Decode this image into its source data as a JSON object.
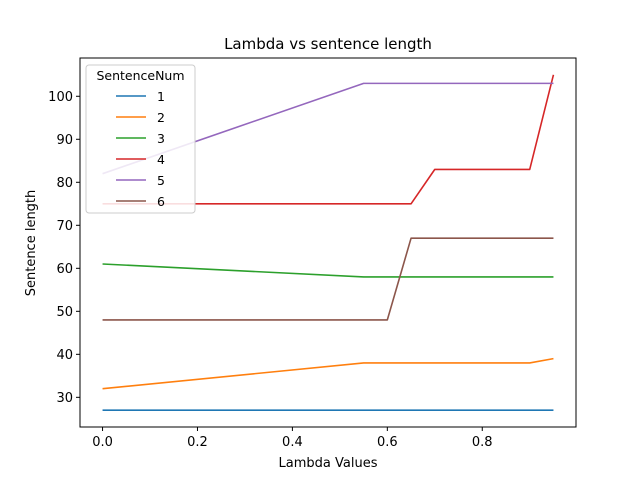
{
  "chart_data": {
    "type": "line",
    "title": "Lambda vs sentence length",
    "xlabel": "Lambda Values",
    "ylabel": "Sentence length",
    "xlim": [
      -0.0475,
      0.9975
    ],
    "ylim": [
      23.1,
      108.9
    ],
    "xticks": [
      0.0,
      0.2,
      0.4,
      0.6,
      0.8
    ],
    "xtick_labels": [
      "0.0",
      "0.2",
      "0.4",
      "0.6",
      "0.8"
    ],
    "yticks": [
      30,
      40,
      50,
      60,
      70,
      80,
      90,
      100
    ],
    "ytick_labels": [
      "30",
      "40",
      "50",
      "60",
      "70",
      "80",
      "90",
      "100"
    ],
    "grid": false,
    "legend": {
      "title": "SentenceNum",
      "placement": "top-left"
    },
    "series": [
      {
        "name": "1",
        "color": "#1f77b4",
        "x": [
          0.0,
          0.55,
          0.95
        ],
        "y": [
          27,
          27,
          27
        ]
      },
      {
        "name": "2",
        "color": "#ff7f0e",
        "x": [
          0.0,
          0.55,
          0.9,
          0.95
        ],
        "y": [
          32,
          38,
          38,
          39
        ]
      },
      {
        "name": "3",
        "color": "#2ca02c",
        "x": [
          0.0,
          0.55,
          0.95
        ],
        "y": [
          61,
          58,
          58
        ]
      },
      {
        "name": "4",
        "color": "#d62728",
        "x": [
          0.0,
          0.65,
          0.7,
          0.9,
          0.95
        ],
        "y": [
          75,
          75,
          83,
          83,
          105
        ]
      },
      {
        "name": "5",
        "color": "#9467bd",
        "x": [
          0.0,
          0.55,
          0.95
        ],
        "y": [
          82,
          103,
          103
        ]
      },
      {
        "name": "6",
        "color": "#8c564b",
        "x": [
          0.0,
          0.6,
          0.65,
          0.95
        ],
        "y": [
          48,
          48,
          67,
          67
        ]
      }
    ]
  }
}
